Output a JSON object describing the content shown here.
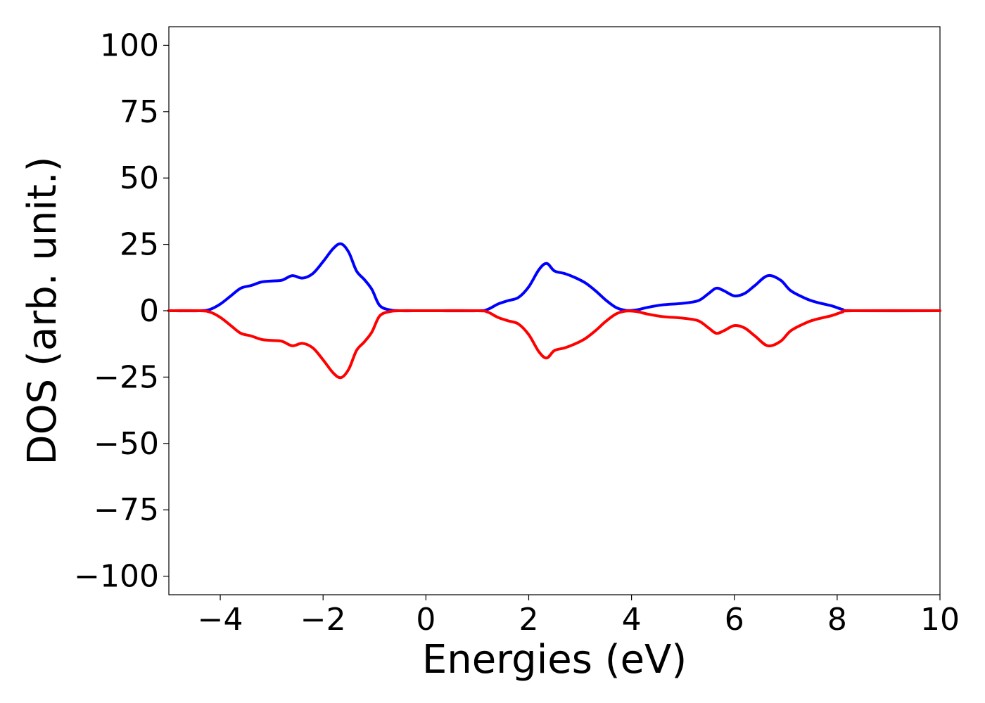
{
  "chart_data": {
    "type": "line",
    "title": "",
    "xlabel": "Energies (eV)",
    "ylabel": "DOS (arb. unit.)",
    "xlim": [
      -5,
      10
    ],
    "ylim": [
      -107,
      107
    ],
    "x_ticks": [
      -4,
      -2,
      0,
      2,
      4,
      6,
      8,
      10
    ],
    "x_tick_labels": [
      "−4",
      "−2",
      "0",
      "2",
      "4",
      "6",
      "8",
      "10"
    ],
    "y_ticks": [
      100,
      75,
      50,
      25,
      0,
      -25,
      -50,
      -75,
      -100
    ],
    "y_tick_labels": [
      "100",
      "75",
      "50",
      "25",
      "0",
      "−25",
      "−50",
      "−75",
      "−100"
    ],
    "grid": false,
    "legend": "none",
    "series": [
      {
        "color": "#0000ff",
        "x": [
          -5,
          -4.4,
          -4.2,
          -4.0,
          -3.8,
          -3.6,
          -3.4,
          -3.2,
          -3.0,
          -2.8,
          -2.6,
          -2.4,
          -2.2,
          -2.0,
          -1.8,
          -1.65,
          -1.5,
          -1.35,
          -1.2,
          -1.05,
          -0.9,
          -0.7,
          -0.5,
          0,
          1.0,
          1.2,
          1.4,
          1.6,
          1.8,
          2.0,
          2.2,
          2.35,
          2.5,
          2.7,
          2.9,
          3.1,
          3.3,
          3.5,
          3.7,
          3.9,
          4.1,
          4.3,
          4.6,
          5.0,
          5.3,
          5.5,
          5.65,
          5.8,
          6.0,
          6.2,
          6.4,
          6.65,
          6.9,
          7.1,
          7.4,
          7.6,
          7.9,
          8.1,
          8.3,
          10
        ],
        "y": [
          0,
          0,
          0.5,
          2.5,
          5.5,
          8.5,
          9.5,
          10.8,
          11.2,
          11.5,
          13.2,
          12.3,
          14,
          18.5,
          23.5,
          25.2,
          22,
          15,
          11.8,
          8,
          2,
          0.3,
          0,
          0,
          0,
          0.5,
          2.5,
          3.8,
          5,
          9,
          15.5,
          17.8,
          15,
          14,
          12.5,
          10.5,
          7.5,
          4,
          1.2,
          0.1,
          0.3,
          1.2,
          2.2,
          2.8,
          3.8,
          6.5,
          8.5,
          7.5,
          5.6,
          6.5,
          9.5,
          13.2,
          11.5,
          7.5,
          4.5,
          3.2,
          1.8,
          0.5,
          0,
          0
        ]
      },
      {
        "color": "#ff0000",
        "x": [
          -5,
          -4.4,
          -4.2,
          -4.0,
          -3.8,
          -3.6,
          -3.4,
          -3.2,
          -3.0,
          -2.8,
          -2.6,
          -2.4,
          -2.2,
          -2.0,
          -1.8,
          -1.65,
          -1.5,
          -1.35,
          -1.2,
          -1.05,
          -0.9,
          -0.7,
          -0.5,
          0,
          1.0,
          1.2,
          1.4,
          1.6,
          1.8,
          2.0,
          2.2,
          2.35,
          2.5,
          2.7,
          2.9,
          3.1,
          3.3,
          3.5,
          3.7,
          3.9,
          4.1,
          4.3,
          4.6,
          5.0,
          5.3,
          5.5,
          5.65,
          5.8,
          6.0,
          6.2,
          6.4,
          6.65,
          6.9,
          7.1,
          7.4,
          7.6,
          7.9,
          8.1,
          8.3,
          10
        ],
        "y": [
          0,
          0,
          -0.5,
          -2.5,
          -5.5,
          -8.5,
          -9.5,
          -10.8,
          -11.2,
          -11.5,
          -13.2,
          -12.3,
          -14,
          -18.5,
          -23.5,
          -25.2,
          -22,
          -15,
          -11.8,
          -8,
          -2,
          -0.3,
          0,
          0,
          0,
          -0.5,
          -2.5,
          -3.8,
          -5,
          -9,
          -15.5,
          -17.8,
          -15,
          -14,
          -12.5,
          -10.5,
          -7.5,
          -4,
          -1.2,
          -0.1,
          -0.3,
          -1.2,
          -2.2,
          -2.8,
          -3.8,
          -6.5,
          -8.5,
          -7.5,
          -5.6,
          -6.5,
          -9.5,
          -13.2,
          -11.5,
          -7.5,
          -4.5,
          -3.2,
          -1.8,
          -0.5,
          0,
          0
        ]
      }
    ]
  }
}
